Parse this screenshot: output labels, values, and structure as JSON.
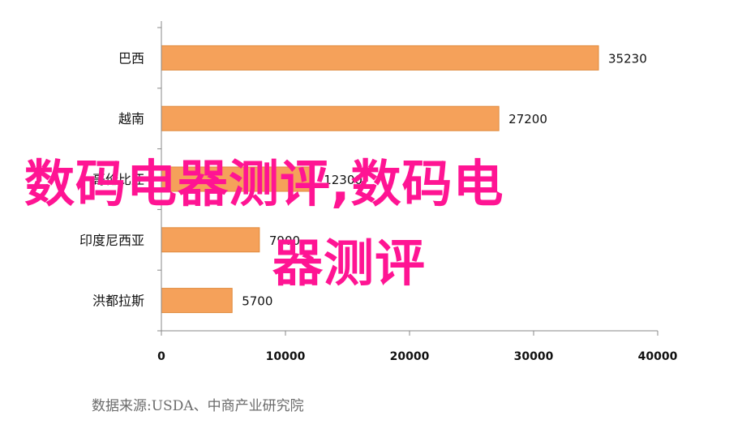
{
  "chart_data": {
    "type": "bar",
    "orientation": "horizontal",
    "categories": [
      "巴西",
      "越南",
      "哥伦比亚",
      "印度尼西亚",
      "洪都拉斯"
    ],
    "values": [
      35230,
      27200,
      12300,
      7900,
      5700
    ],
    "value_labels": [
      "35230",
      "27200",
      "12300",
      "7900",
      "5700"
    ],
    "xlim": [
      0,
      40000
    ],
    "xticks": [
      0,
      10000,
      20000,
      30000,
      40000
    ],
    "xtick_labels": [
      "0",
      "10000",
      "20000",
      "30000",
      "40000"
    ],
    "grid": false,
    "bar_color": "#f5a15a",
    "bar_border": "#e08a3c"
  },
  "source_text": "数据来源:USDA、中商产业研究院",
  "watermark": {
    "line1": "数码电器测评,数码电",
    "line2": "器测评",
    "color": "#ff1493"
  }
}
